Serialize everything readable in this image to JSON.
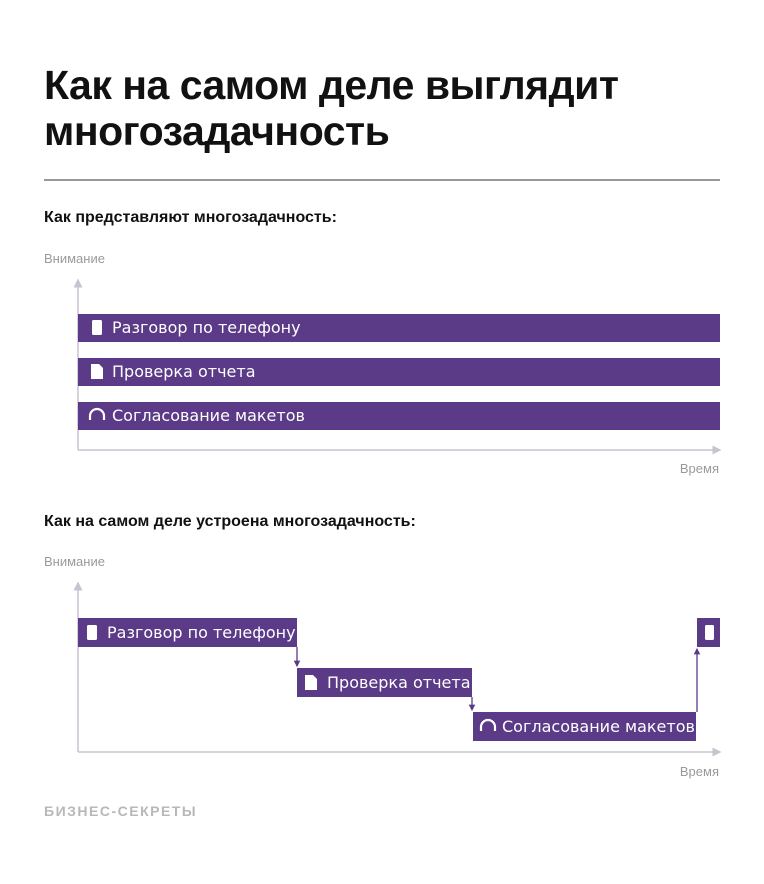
{
  "header": {
    "title": "Как на самом деле выглядит многозадачность"
  },
  "sections": [
    {
      "heading": "Как представляют многозадачность:",
      "y_label": "Внимание",
      "x_label": "Время",
      "tasks": [
        "Разговор по телефону",
        "Проверка отчета",
        "Согласование макетов"
      ]
    },
    {
      "heading": "Как на самом деле устроена многозадачность:",
      "y_label": "Внимание",
      "x_label": "Время",
      "tasks": [
        "Разговор по телефону",
        "Проверка отчета",
        "Согласование макетов"
      ]
    }
  ],
  "footer": {
    "brand": "БИЗНЕС-СЕКРЕТЫ"
  }
}
